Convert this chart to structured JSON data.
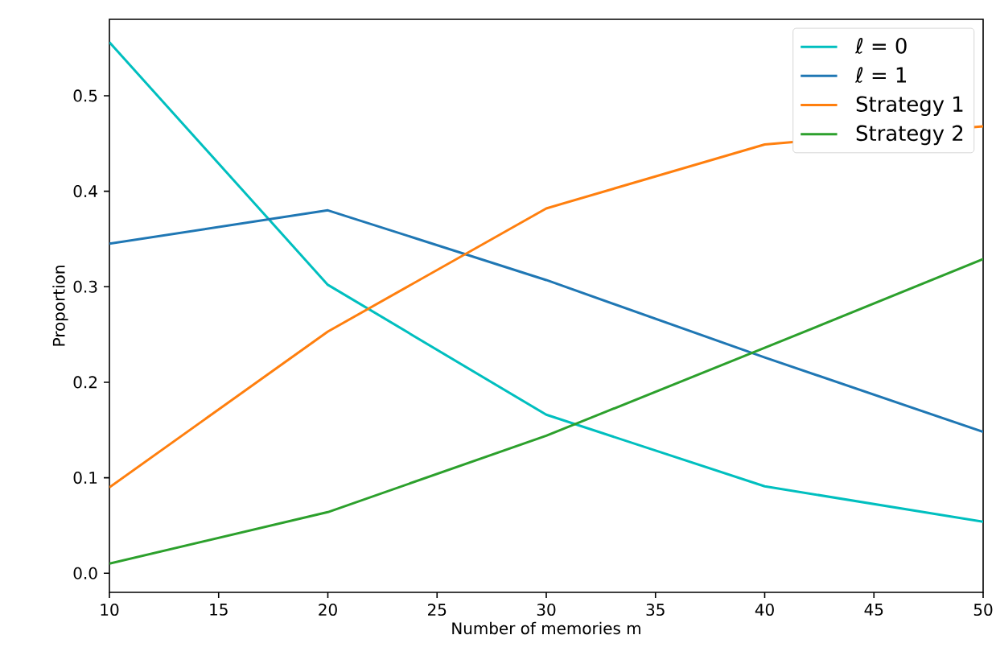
{
  "chart_data": {
    "type": "line",
    "xlabel": "Number of memories m",
    "ylabel": "Proportion",
    "x": [
      10,
      20,
      30,
      40,
      50
    ],
    "series": [
      {
        "name": "ℓ = 0",
        "color": "#00bfbf",
        "values": [
          0.556,
          0.302,
          0.166,
          0.091,
          0.054
        ]
      },
      {
        "name": "ℓ = 1",
        "color": "#1f77b4",
        "values": [
          0.345,
          0.38,
          0.307,
          0.226,
          0.148
        ]
      },
      {
        "name": "Strategy 1",
        "color": "#ff7f0e",
        "values": [
          0.09,
          0.253,
          0.382,
          0.449,
          0.468
        ]
      },
      {
        "name": "Strategy 2",
        "color": "#2ca02c",
        "values": [
          0.01,
          0.064,
          0.144,
          0.236,
          0.329
        ]
      }
    ],
    "xlim": [
      10,
      50
    ],
    "ylim": [
      -0.02,
      0.58
    ],
    "xticks": [
      10,
      15,
      20,
      25,
      30,
      35,
      40,
      45,
      50
    ],
    "yticks": [
      {
        "value": 0,
        "label": "0.0"
      },
      0.1,
      0.2,
      0.3,
      0.4,
      0.5
    ],
    "legend": "top right",
    "grid": false,
    "marker": "none",
    "line_style": "solid"
  }
}
